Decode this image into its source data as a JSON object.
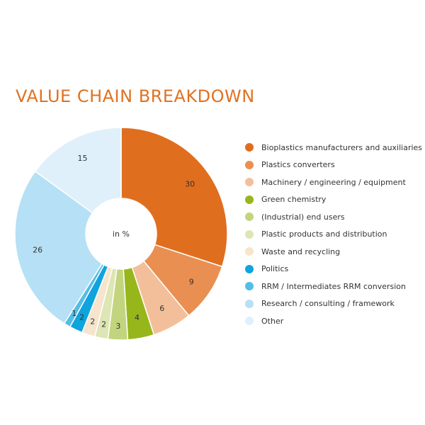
{
  "title": "VALUE CHAIN BREAKDOWN",
  "center_label": "in %",
  "chart_data": {
    "type": "pie",
    "unit": "in %",
    "title": "VALUE CHAIN BREAKDOWN",
    "series": [
      {
        "name": "Bioplastics manufacturers and auxiliaries",
        "value": 30,
        "color": "#e06e1f"
      },
      {
        "name": "Plastics converters",
        "value": 9,
        "color": "#ea8f52"
      },
      {
        "name": "Machinery / engineering / equipment",
        "value": 6,
        "color": "#f3bf9a"
      },
      {
        "name": "Green chemistry",
        "value": 4,
        "color": "#97b61b"
      },
      {
        "name": "(Industrial) end users",
        "value": 3,
        "color": "#c2d57e"
      },
      {
        "name": "Plastic products and distribution",
        "value": 2,
        "color": "#dde6b4"
      },
      {
        "name": "Waste and recycling",
        "value": 2,
        "color": "#f6e5cc"
      },
      {
        "name": "Politics",
        "value": 2,
        "color": "#0fa4dd"
      },
      {
        "name": "RRM / Intermediates RRM conversion",
        "value": 1,
        "color": "#54bde6"
      },
      {
        "name": "Research / consulting / framework",
        "value": 26,
        "color": "#b6e0f5"
      },
      {
        "name": "Other",
        "value": 15,
        "color": "#dff0fa"
      }
    ]
  }
}
